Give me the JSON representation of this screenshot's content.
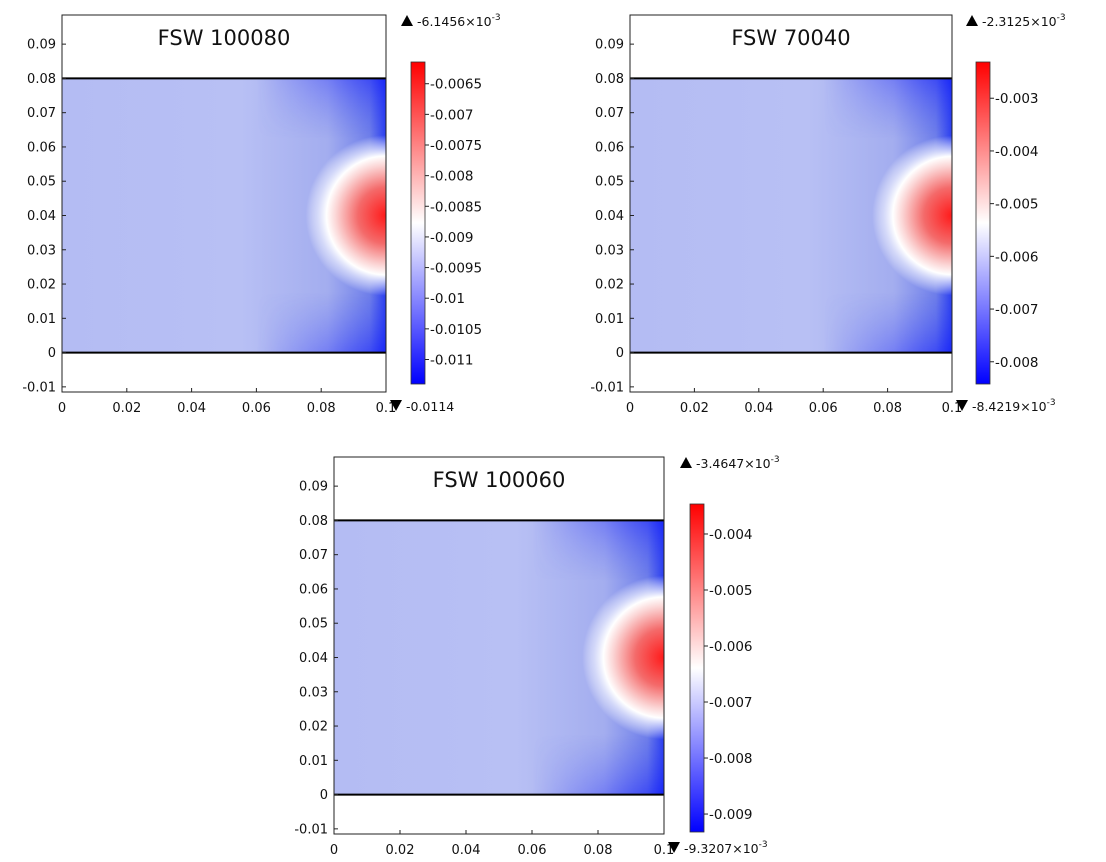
{
  "chart_data": [
    {
      "type": "heatmap",
      "title": "FSW 100080",
      "x_ticks": [
        "0",
        "0.02",
        "0.04",
        "0.06",
        "0.08",
        "0.1"
      ],
      "y_ticks": [
        "0.09",
        "0.08",
        "0.07",
        "0.06",
        "0.05",
        "0.04",
        "0.03",
        "0.02",
        "0.01",
        "0",
        "-0.01"
      ],
      "xlim": [
        0,
        0.1
      ],
      "ylim": [
        -0.0115,
        0.0985
      ],
      "domain": {
        "x": [
          0,
          0.1
        ],
        "y": [
          0,
          0.08
        ]
      },
      "hotspot": {
        "x": 0.1,
        "y": 0.04,
        "radius": 0.016
      },
      "colorbar": {
        "max_label": "-6.1456×10",
        "max_exp": "-3",
        "min_label": "-0.0114",
        "min_exp": "",
        "max": -0.0061456,
        "min": -0.0114,
        "ticks": [
          "-0.0065",
          "-0.007",
          "-0.0075",
          "-0.008",
          "-0.0085",
          "-0.009",
          "-0.0095",
          "-0.01",
          "-0.0105",
          "-0.011"
        ],
        "colors": [
          "#0000ff",
          "#ffffff",
          "#ff0000"
        ]
      }
    },
    {
      "type": "heatmap",
      "title": "FSW 70040",
      "x_ticks": [
        "0",
        "0.02",
        "0.04",
        "0.06",
        "0.08",
        "0.1"
      ],
      "y_ticks": [
        "0.09",
        "0.08",
        "0.07",
        "0.06",
        "0.05",
        "0.04",
        "0.03",
        "0.02",
        "0.01",
        "0",
        "-0.01"
      ],
      "xlim": [
        0,
        0.1
      ],
      "ylim": [
        -0.0115,
        0.0985
      ],
      "domain": {
        "x": [
          0,
          0.1
        ],
        "y": [
          0,
          0.08
        ]
      },
      "hotspot": {
        "x": 0.1,
        "y": 0.04,
        "radius": 0.016
      },
      "colorbar": {
        "max_label": "-2.3125×10",
        "max_exp": "-3",
        "min_label": "-8.4219×10",
        "min_exp": "-3",
        "max": -0.0023125,
        "min": -0.0084219,
        "ticks": [
          "-0.003",
          "-0.004",
          "-0.005",
          "-0.006",
          "-0.007",
          "-0.008"
        ],
        "colors": [
          "#0000ff",
          "#ffffff",
          "#ff0000"
        ]
      }
    },
    {
      "type": "heatmap",
      "title": "FSW 100060",
      "x_ticks": [
        "0",
        "0.02",
        "0.04",
        "0.06",
        "0.08",
        "0.1"
      ],
      "y_ticks": [
        "0.09",
        "0.08",
        "0.07",
        "0.06",
        "0.05",
        "0.04",
        "0.03",
        "0.02",
        "0.01",
        "0",
        "-0.01"
      ],
      "xlim": [
        0,
        0.1
      ],
      "ylim": [
        -0.0115,
        0.0985
      ],
      "domain": {
        "x": [
          0,
          0.1
        ],
        "y": [
          0,
          0.08
        ]
      },
      "hotspot": {
        "x": 0.1,
        "y": 0.04,
        "radius": 0.016
      },
      "colorbar": {
        "max_label": "-3.4647×10",
        "max_exp": "-3",
        "min_label": "-9.3207×10",
        "min_exp": "-3",
        "max": -0.0034647,
        "min": -0.0093207,
        "ticks": [
          "-0.004",
          "-0.005",
          "-0.006",
          "-0.007",
          "-0.008",
          "-0.009"
        ],
        "colors": [
          "#0000ff",
          "#ffffff",
          "#ff0000"
        ]
      }
    }
  ]
}
